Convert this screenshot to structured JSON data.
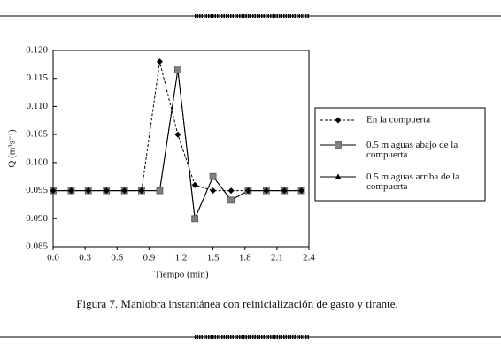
{
  "chart_data": {
    "type": "line",
    "x": [
      0,
      0.17,
      0.33,
      0.5,
      0.67,
      0.83,
      1.0,
      1.17,
      1.33,
      1.5,
      1.67,
      1.83,
      2.0,
      2.17,
      2.33
    ],
    "series": [
      {
        "name": "En la compuerta",
        "color": "#000000",
        "marker": "diamond",
        "dashed": true,
        "values": [
          0.095,
          0.095,
          0.095,
          0.095,
          0.095,
          0.095,
          0.118,
          0.105,
          0.096,
          0.095,
          0.095,
          0.095,
          0.095,
          0.095,
          0.095
        ]
      },
      {
        "name": "0.5 m aguas abajo de la compuerta",
        "color": "#808080",
        "marker": "square",
        "dashed": false,
        "values": [
          0.095,
          0.095,
          0.095,
          0.095,
          0.095,
          0.095,
          0.095,
          0.1165,
          0.09,
          0.0975,
          0.0933,
          0.095,
          0.095,
          0.095,
          0.095
        ]
      },
      {
        "name": "0.5 m aguas arriba de la compuerta",
        "color": "#000000",
        "marker": "triangle",
        "dashed": false,
        "values": [
          0.095,
          0.095,
          0.095,
          0.095,
          0.095,
          0.095,
          0.095,
          0.1165,
          0.09,
          0.0975,
          0.0933,
          0.095,
          0.095,
          0.095,
          0.095
        ]
      }
    ],
    "xlim": [
      0,
      2.4
    ],
    "ylim": [
      0.085,
      0.12
    ],
    "xticks": [
      {
        "value": 0,
        "label": "0.0"
      },
      0.3,
      0.6,
      0.9,
      1.2,
      1.5,
      1.8,
      2.1,
      2.4
    ],
    "yticks": [
      {
        "value": 0.085,
        "label": "0.085"
      },
      {
        "value": 0.09,
        "label": "0.090"
      },
      {
        "value": 0.095,
        "label": "0.095"
      },
      {
        "value": 0.1,
        "label": "0.100"
      },
      {
        "value": 0.105,
        "label": "0.105"
      },
      {
        "value": 0.11,
        "label": "0.110"
      },
      {
        "value": 0.115,
        "label": "0.115"
      },
      {
        "value": 0.12,
        "label": "0.120"
      }
    ],
    "x_label": "Tiempo (min)",
    "y_label": "Q (m³s⁻¹)",
    "caption": "Figura 7. Maniobra instantánea con reinicialización de gasto y tirante."
  }
}
